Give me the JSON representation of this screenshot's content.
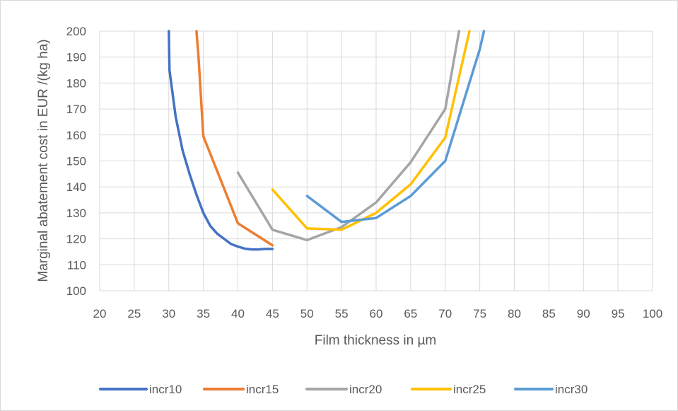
{
  "chart_data": {
    "type": "line",
    "title": "",
    "xlabel": "Film thickness in µm",
    "ylabel": "Marginal abatement cost in EUR /(kg ha)",
    "xlim": [
      20,
      100
    ],
    "ylim": [
      100,
      200
    ],
    "x_ticks": [
      20,
      25,
      30,
      35,
      40,
      45,
      50,
      55,
      60,
      65,
      70,
      75,
      80,
      85,
      90,
      95,
      100
    ],
    "y_ticks": [
      100,
      110,
      120,
      130,
      140,
      150,
      160,
      170,
      180,
      190,
      200
    ],
    "grid": true,
    "legend_position": "bottom",
    "series": [
      {
        "name": "incr10",
        "color": "#4472C4",
        "points": [
          [
            30,
            200
          ],
          [
            30.1,
            185
          ],
          [
            31,
            167
          ],
          [
            32,
            154
          ],
          [
            33,
            145
          ],
          [
            34,
            137
          ],
          [
            35,
            130
          ],
          [
            36,
            125
          ],
          [
            37,
            122
          ],
          [
            38,
            120
          ],
          [
            39,
            118
          ],
          [
            40,
            117
          ],
          [
            41,
            116.2
          ],
          [
            42,
            115.9
          ],
          [
            43,
            115.9
          ],
          [
            44,
            116.1
          ],
          [
            45,
            116.1
          ]
        ]
      },
      {
        "name": "incr15",
        "color": "#ED7D31",
        "points": [
          [
            34,
            200
          ],
          [
            34.3,
            190
          ],
          [
            35,
            159.5
          ],
          [
            40,
            126
          ],
          [
            45,
            117.5
          ]
        ]
      },
      {
        "name": "incr20",
        "color": "#A5A5A5",
        "points": [
          [
            40,
            145.5
          ],
          [
            45,
            123.5
          ],
          [
            50,
            119.5
          ],
          [
            55,
            124.5
          ],
          [
            60,
            134
          ],
          [
            65,
            149.5
          ],
          [
            70,
            170
          ],
          [
            72,
            200
          ]
        ]
      },
      {
        "name": "incr25",
        "color": "#FFC000",
        "points": [
          [
            45,
            139
          ],
          [
            50,
            124
          ],
          [
            55,
            123.5
          ],
          [
            60,
            130
          ],
          [
            65,
            141
          ],
          [
            70,
            159
          ],
          [
            73.5,
            200
          ]
        ]
      },
      {
        "name": "incr30",
        "color": "#5B9BD5",
        "points": [
          [
            50,
            136.5
          ],
          [
            55,
            126.5
          ],
          [
            60,
            128
          ],
          [
            65,
            136.5
          ],
          [
            70,
            150
          ],
          [
            75,
            193
          ],
          [
            75.6,
            200
          ]
        ]
      }
    ]
  }
}
